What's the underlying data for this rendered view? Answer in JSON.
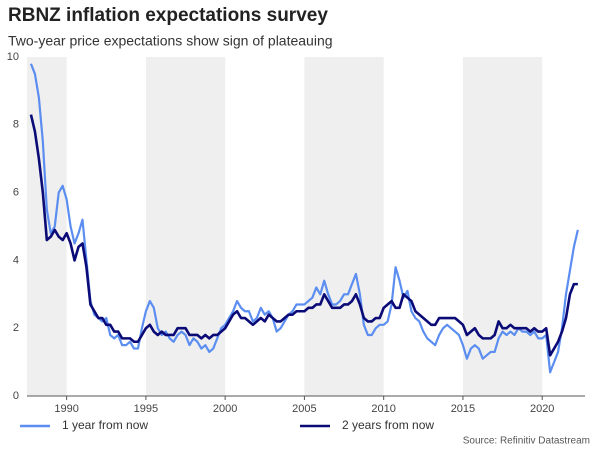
{
  "chart_data": {
    "type": "line",
    "title": "RBNZ inflation expectations survey",
    "subtitle": "Two-year price expectations show sign of plateauing",
    "source": "Source: Refinitiv Datastream",
    "xlim": [
      1987.5,
      2022.7
    ],
    "ylim": [
      0,
      10
    ],
    "xticks": [
      1990,
      1995,
      2000,
      2005,
      2010,
      2015,
      2020
    ],
    "yticks": [
      0,
      2,
      4,
      6,
      8,
      10
    ],
    "grid": false,
    "alternate_shading": true,
    "legend": "bottom",
    "x": [
      1987.75,
      1988,
      1988.25,
      1988.5,
      1988.75,
      1989,
      1989.25,
      1989.5,
      1989.75,
      1990,
      1990.25,
      1990.5,
      1990.75,
      1991,
      1991.25,
      1991.5,
      1991.75,
      1992,
      1992.25,
      1992.5,
      1992.75,
      1993,
      1993.25,
      1993.5,
      1993.75,
      1994,
      1994.25,
      1994.5,
      1994.75,
      1995,
      1995.25,
      1995.5,
      1995.75,
      1996,
      1996.25,
      1996.5,
      1996.75,
      1997,
      1997.25,
      1997.5,
      1997.75,
      1998,
      1998.25,
      1998.5,
      1998.75,
      1999,
      1999.25,
      1999.5,
      1999.75,
      2000,
      2000.25,
      2000.5,
      2000.75,
      2001,
      2001.25,
      2001.5,
      2001.75,
      2002,
      2002.25,
      2002.5,
      2002.75,
      2003,
      2003.25,
      2003.5,
      2003.75,
      2004,
      2004.25,
      2004.5,
      2004.75,
      2005,
      2005.25,
      2005.5,
      2005.75,
      2006,
      2006.25,
      2006.5,
      2006.75,
      2007,
      2007.25,
      2007.5,
      2007.75,
      2008,
      2008.25,
      2008.5,
      2008.75,
      2009,
      2009.25,
      2009.5,
      2009.75,
      2010,
      2010.25,
      2010.5,
      2010.75,
      2011,
      2011.25,
      2011.5,
      2011.75,
      2012,
      2012.25,
      2012.5,
      2012.75,
      2013,
      2013.25,
      2013.5,
      2013.75,
      2014,
      2014.25,
      2014.5,
      2014.75,
      2015,
      2015.25,
      2015.5,
      2015.75,
      2016,
      2016.25,
      2016.5,
      2016.75,
      2017,
      2017.25,
      2017.5,
      2017.75,
      2018,
      2018.25,
      2018.5,
      2018.75,
      2019,
      2019.25,
      2019.5,
      2019.75,
      2020,
      2020.25,
      2020.5,
      2020.75,
      2021,
      2021.25,
      2021.5,
      2021.75,
      2022,
      2022.25
    ],
    "series": [
      {
        "name": "1 year from now",
        "color": "#5b8ef0",
        "values": [
          9.8,
          9.5,
          8.8,
          7.5,
          5.5,
          4.8,
          5.0,
          6.0,
          6.2,
          5.8,
          5.0,
          4.5,
          4.8,
          5.2,
          4.0,
          2.8,
          2.4,
          2.3,
          2.2,
          2.3,
          1.8,
          1.7,
          1.8,
          1.5,
          1.5,
          1.6,
          1.4,
          1.4,
          2.0,
          2.5,
          2.8,
          2.6,
          2.0,
          1.8,
          1.9,
          1.7,
          1.6,
          1.8,
          1.9,
          1.8,
          1.5,
          1.7,
          1.6,
          1.4,
          1.5,
          1.3,
          1.4,
          1.7,
          2.0,
          2.1,
          2.3,
          2.5,
          2.8,
          2.6,
          2.5,
          2.5,
          2.2,
          2.3,
          2.6,
          2.4,
          2.5,
          2.3,
          1.9,
          2.0,
          2.2,
          2.4,
          2.5,
          2.7,
          2.7,
          2.7,
          2.8,
          2.9,
          3.2,
          3.0,
          3.4,
          3.0,
          2.7,
          2.7,
          2.8,
          3.0,
          3.0,
          3.3,
          3.6,
          3.0,
          2.1,
          1.8,
          1.8,
          2.0,
          2.1,
          2.1,
          2.2,
          2.7,
          3.8,
          3.4,
          2.9,
          3.1,
          2.5,
          2.3,
          2.2,
          1.9,
          1.7,
          1.6,
          1.5,
          1.8,
          2.0,
          2.1,
          2.0,
          1.9,
          1.8,
          1.5,
          1.1,
          1.4,
          1.5,
          1.4,
          1.1,
          1.2,
          1.3,
          1.3,
          1.7,
          1.9,
          1.8,
          1.9,
          1.8,
          2.0,
          1.9,
          1.9,
          1.8,
          1.9,
          1.7,
          1.7,
          1.8,
          0.7,
          1.0,
          1.3,
          2.0,
          3.0,
          3.7,
          4.4,
          4.9
        ]
      },
      {
        "name": "2 years from now",
        "color": "#0b0b78",
        "values": [
          8.3,
          7.8,
          7.0,
          6.0,
          4.6,
          4.7,
          4.9,
          4.7,
          4.6,
          4.8,
          4.5,
          4.0,
          4.4,
          4.5,
          3.8,
          2.7,
          2.5,
          2.3,
          2.3,
          2.1,
          2.1,
          1.9,
          1.9,
          1.7,
          1.7,
          1.7,
          1.6,
          1.6,
          1.8,
          2.0,
          2.1,
          1.9,
          1.8,
          1.9,
          1.8,
          1.8,
          1.8,
          2.0,
          2.0,
          2.0,
          1.8,
          1.8,
          1.8,
          1.7,
          1.8,
          1.7,
          1.8,
          1.8,
          1.9,
          2.0,
          2.2,
          2.4,
          2.5,
          2.3,
          2.3,
          2.2,
          2.1,
          2.2,
          2.3,
          2.2,
          2.4,
          2.3,
          2.2,
          2.2,
          2.3,
          2.4,
          2.4,
          2.5,
          2.5,
          2.5,
          2.6,
          2.6,
          2.7,
          2.7,
          3.0,
          2.8,
          2.6,
          2.6,
          2.6,
          2.7,
          2.7,
          2.8,
          3.0,
          2.7,
          2.3,
          2.2,
          2.2,
          2.3,
          2.3,
          2.6,
          2.7,
          2.8,
          2.6,
          2.6,
          3.0,
          2.9,
          2.8,
          2.5,
          2.4,
          2.3,
          2.2,
          2.1,
          2.1,
          2.3,
          2.3,
          2.3,
          2.3,
          2.3,
          2.2,
          2.1,
          1.8,
          1.9,
          2.0,
          1.8,
          1.7,
          1.7,
          1.7,
          1.8,
          2.2,
          2.0,
          2.0,
          2.1,
          2.0,
          2.0,
          2.0,
          2.0,
          1.9,
          2.0,
          1.9,
          1.9,
          2.0,
          1.2,
          1.4,
          1.6,
          1.9,
          2.3,
          3.0,
          3.3,
          3.3
        ]
      }
    ]
  }
}
